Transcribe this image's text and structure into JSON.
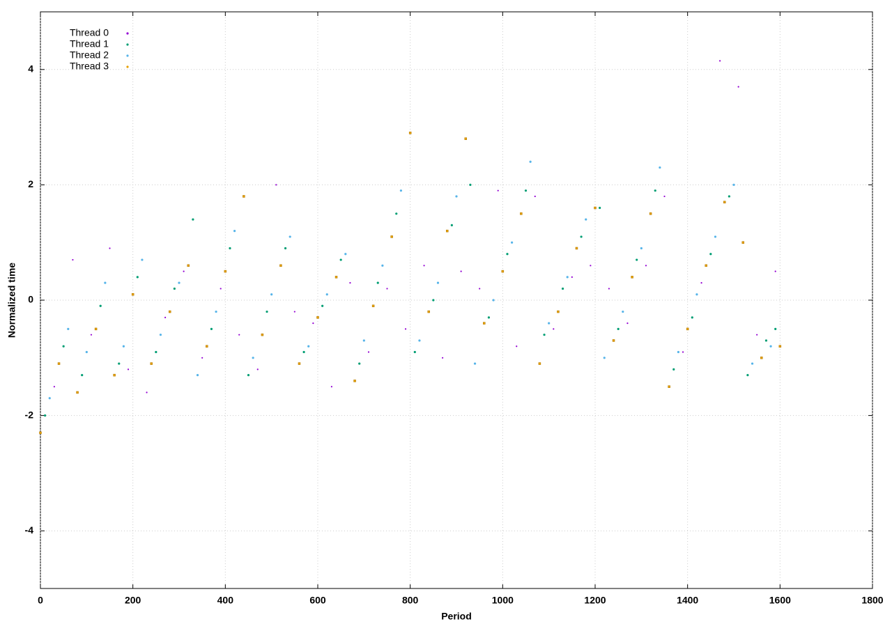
{
  "chart_data": {
    "type": "scatter",
    "xlabel": "Period",
    "ylabel": "Normalized time",
    "xlim": [
      0,
      1800
    ],
    "xticks": [
      0,
      200,
      400,
      600,
      800,
      1000,
      1200,
      1400,
      1600,
      1800
    ],
    "ylim": [
      -5,
      5
    ],
    "yticks": [
      -4,
      -2,
      0,
      2,
      4
    ],
    "grid": true,
    "legend": "top left",
    "series": [
      {
        "name": "Thread 0",
        "color": "#9400d3",
        "x": [
          30,
          70,
          110,
          150,
          190,
          230,
          270,
          310,
          350,
          390,
          430,
          470,
          510,
          550,
          590,
          630,
          670,
          710,
          750,
          790,
          830,
          870,
          910,
          950,
          990,
          1030,
          1070,
          1110,
          1150,
          1190,
          1230,
          1270,
          1310,
          1350,
          1390,
          1430,
          1470,
          1510,
          1550,
          1590
        ],
        "values": [
          -1.5,
          0.7,
          -0.6,
          0.9,
          -1.2,
          -1.6,
          -0.3,
          0.5,
          -1.0,
          0.2,
          -0.6,
          -1.2,
          2.0,
          -0.2,
          -0.4,
          -1.5,
          0.3,
          -0.9,
          0.2,
          -0.5,
          0.6,
          -1.0,
          0.5,
          0.2,
          1.9,
          -0.8,
          1.8,
          -0.5,
          0.4,
          0.6,
          0.2,
          -0.4,
          0.6,
          1.8,
          -0.9,
          0.3,
          4.15,
          3.7,
          -0.6,
          0.5
        ]
      },
      {
        "name": "Thread 1",
        "color": "#009e73",
        "x": [
          10,
          50,
          90,
          130,
          170,
          210,
          250,
          290,
          330,
          370,
          410,
          450,
          490,
          530,
          570,
          610,
          650,
          690,
          730,
          770,
          810,
          850,
          890,
          930,
          970,
          1010,
          1050,
          1090,
          1130,
          1170,
          1210,
          1250,
          1290,
          1330,
          1370,
          1410,
          1450,
          1490,
          1530,
          1570,
          1590
        ],
        "values": [
          -2.0,
          -0.8,
          -1.3,
          -0.1,
          -1.1,
          0.4,
          -0.9,
          0.2,
          1.4,
          -0.5,
          0.9,
          -1.3,
          -0.2,
          0.9,
          -0.9,
          -0.1,
          0.7,
          -1.1,
          0.3,
          1.5,
          -0.9,
          0.0,
          1.3,
          2.0,
          -0.3,
          0.8,
          1.9,
          -0.6,
          0.2,
          1.1,
          1.6,
          -0.5,
          0.7,
          1.9,
          -1.2,
          -0.3,
          0.8,
          1.8,
          -1.3,
          -0.7,
          -0.5
        ]
      },
      {
        "name": "Thread 2",
        "color": "#56b4e9",
        "x": [
          20,
          60,
          100,
          140,
          180,
          220,
          260,
          300,
          340,
          380,
          420,
          460,
          500,
          540,
          580,
          620,
          660,
          700,
          740,
          780,
          820,
          860,
          900,
          940,
          980,
          1020,
          1060,
          1100,
          1140,
          1180,
          1220,
          1260,
          1300,
          1340,
          1380,
          1420,
          1460,
          1500,
          1540,
          1580
        ],
        "values": [
          -1.7,
          -0.5,
          -0.9,
          0.3,
          -0.8,
          0.7,
          -0.6,
          0.3,
          -1.3,
          -0.2,
          1.2,
          -1.0,
          0.1,
          1.1,
          -0.8,
          0.1,
          0.8,
          -0.7,
          0.6,
          1.9,
          -0.7,
          0.3,
          1.8,
          -1.1,
          0.0,
          1.0,
          2.4,
          -0.4,
          0.4,
          1.4,
          -1.0,
          -0.2,
          0.9,
          2.3,
          -0.9,
          0.1,
          1.1,
          2.0,
          -1.1,
          -0.8
        ]
      },
      {
        "name": "Thread 3",
        "color": "#e69f00",
        "x": [
          0,
          40,
          80,
          120,
          160,
          200,
          240,
          280,
          320,
          360,
          400,
          440,
          480,
          520,
          560,
          600,
          640,
          680,
          720,
          760,
          800,
          840,
          880,
          920,
          960,
          1000,
          1040,
          1080,
          1120,
          1160,
          1200,
          1240,
          1280,
          1320,
          1360,
          1400,
          1440,
          1480,
          1520,
          1560,
          1600
        ],
        "values": [
          -2.3,
          -1.1,
          -1.6,
          -0.5,
          -1.3,
          0.1,
          -1.1,
          -0.2,
          0.6,
          -0.8,
          0.5,
          1.8,
          -0.6,
          0.6,
          -1.1,
          -0.3,
          0.4,
          -1.4,
          -0.1,
          1.1,
          2.9,
          -0.2,
          1.2,
          2.8,
          -0.4,
          0.5,
          1.5,
          -1.1,
          -0.2,
          0.9,
          1.6,
          -0.7,
          0.4,
          1.5,
          -1.5,
          -0.5,
          0.6,
          1.7,
          1.0,
          -1.0,
          -0.8
        ]
      }
    ]
  }
}
